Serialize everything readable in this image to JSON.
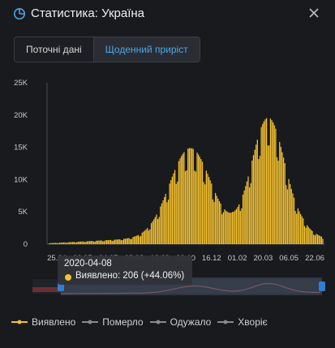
{
  "header": {
    "title": "Статистика: Україна",
    "icon": "pie-chart-icon",
    "close_icon": "close-icon"
  },
  "tabs": [
    {
      "label": "Поточні дані",
      "active": false
    },
    {
      "label": "Щоденний приріст",
      "active": true
    }
  ],
  "colors": {
    "background": "#181a1e",
    "accent": "#4fa6e6",
    "series": "#f4c130",
    "navigator_handle": "#2f7fd0"
  },
  "tooltip": {
    "date": "2020-04-08",
    "value": "Виявлено: 206 (+44.06%)"
  },
  "legend": [
    {
      "label": "Виявлено",
      "active": true
    },
    {
      "label": "Померло",
      "active": false
    },
    {
      "label": "Одужало",
      "active": false
    },
    {
      "label": "Хворіє",
      "active": false
    }
  ],
  "chart_data": {
    "type": "bar",
    "series": [
      {
        "name": "Виявлено"
      }
    ],
    "x_tick_labels": [
      "25.04",
      "30.05",
      "04.07",
      "08.08",
      "13.09",
      "20.10",
      "16.12",
      "01.02",
      "20.03",
      "06.05",
      "22.06"
    ],
    "y_tick_labels": [
      "0",
      "5K",
      "10K",
      "15K",
      "20K",
      "25K"
    ],
    "ylim": [
      0,
      25000
    ],
    "peaks": [
      {
        "label": "16.12",
        "value": 16000
      },
      {
        "label": "20.03",
        "value": 20300
      }
    ],
    "troughs": [
      {
        "label": "01.02",
        "value": 5000
      }
    ],
    "grid": false,
    "navigator": true
  }
}
